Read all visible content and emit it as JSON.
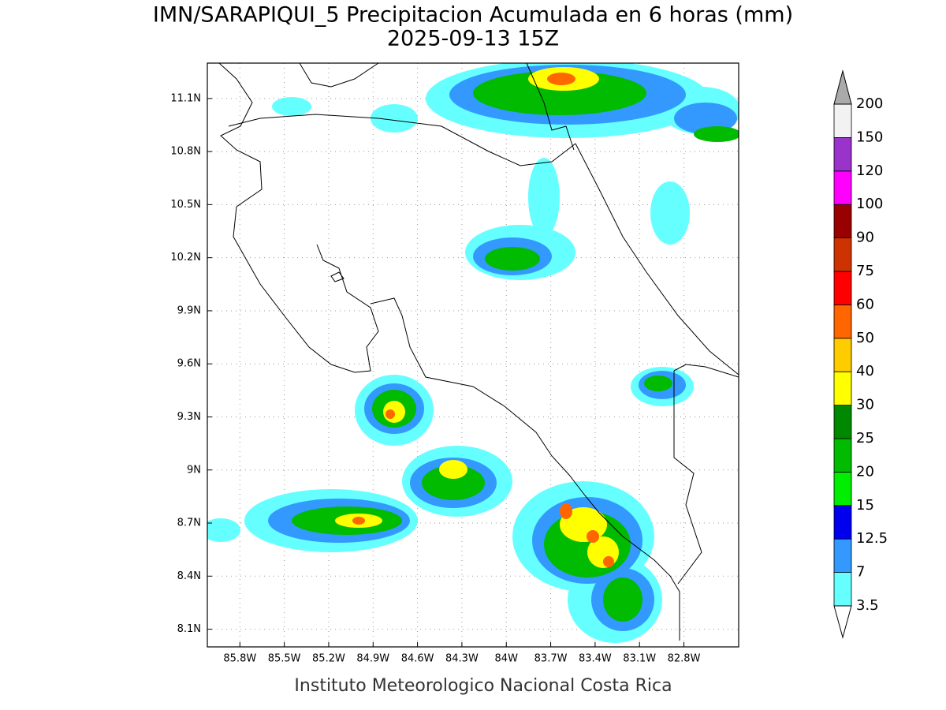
{
  "title": "IMN/SARAPIQUI_5 Precipitacion Acumulada en 6 horas (mm)",
  "subtitle": "2025-09-13 15Z",
  "footer": "Instituto Meteorologico Nacional Costa Rica",
  "map": {
    "xlim": [
      -86.02,
      -82.43
    ],
    "ylim": [
      8.0,
      11.3
    ],
    "xticks": [
      {
        "value": -85.8,
        "label": "85.8W"
      },
      {
        "value": -85.5,
        "label": "85.5W"
      },
      {
        "value": -85.2,
        "label": "85.2W"
      },
      {
        "value": -84.9,
        "label": "84.9W"
      },
      {
        "value": -84.6,
        "label": "84.6W"
      },
      {
        "value": -84.3,
        "label": "84.3W"
      },
      {
        "value": -84.0,
        "label": "84W"
      },
      {
        "value": -83.7,
        "label": "83.7W"
      },
      {
        "value": -83.4,
        "label": "83.4W"
      },
      {
        "value": -83.1,
        "label": "83.1W"
      },
      {
        "value": -82.8,
        "label": "82.8W"
      }
    ],
    "yticks": [
      {
        "value": 8.1,
        "label": "8.1N"
      },
      {
        "value": 8.4,
        "label": "8.4N"
      },
      {
        "value": 8.7,
        "label": "8.7N"
      },
      {
        "value": 9.0,
        "label": "9N"
      },
      {
        "value": 9.3,
        "label": "9.3N"
      },
      {
        "value": 9.6,
        "label": "9.6N"
      },
      {
        "value": 9.9,
        "label": "9.9N"
      },
      {
        "value": 10.2,
        "label": "10.2N"
      },
      {
        "value": 10.5,
        "label": "10.5N"
      },
      {
        "value": 10.8,
        "label": "10.8N"
      },
      {
        "value": 11.1,
        "label": "11.1N"
      }
    ],
    "grid": true
  },
  "colorbar": {
    "levels": [
      3.5,
      7,
      12.5,
      15,
      20,
      25,
      30,
      40,
      50,
      60,
      75,
      90,
      100,
      120,
      150,
      200
    ],
    "colors": [
      "#66ffff",
      "#3399ff",
      "#0000ee",
      "#00ee00",
      "#00bb00",
      "#008800",
      "#ffff00",
      "#ffcc00",
      "#ff6600",
      "#ff0000",
      "#cc3300",
      "#990000",
      "#ff00ff",
      "#9933cc",
      "#f2f2f2"
    ],
    "under_color": "#ffffff",
    "over_color": "#aaaaaa"
  }
}
